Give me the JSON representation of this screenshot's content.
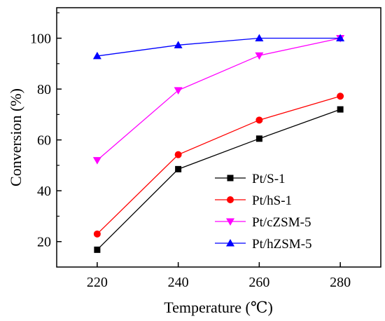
{
  "chart_data": {
    "type": "line",
    "xlabel": "Temperature (℃)",
    "ylabel": "Conversion (%)",
    "x": [
      220,
      240,
      260,
      280
    ],
    "xlim": [
      210,
      290
    ],
    "ylim": [
      10,
      112
    ],
    "xticks": [
      220,
      240,
      260,
      280
    ],
    "yticks": [
      20,
      40,
      60,
      80,
      100
    ],
    "x_tick_labels": [
      "220",
      "240",
      "260",
      "280"
    ],
    "y_tick_labels": [
      "20",
      "40",
      "60",
      "80",
      "100"
    ],
    "grid": false,
    "legend_position": "right",
    "series": [
      {
        "name": "Pt/S-1",
        "values": [
          16.8,
          48.5,
          60.5,
          72.0
        ],
        "color": "#000000",
        "marker": "square"
      },
      {
        "name": "Pt/hS-1",
        "values": [
          23.0,
          54.2,
          67.8,
          77.2
        ],
        "color": "#ff0000",
        "marker": "circle"
      },
      {
        "name": "Pt/cZSM-5",
        "values": [
          52.0,
          79.5,
          93.2,
          100.0
        ],
        "color": "#ff00ff",
        "marker": "triangle-down"
      },
      {
        "name": "Pt/hZSM-5",
        "values": [
          93.0,
          97.3,
          100.0,
          100.0
        ],
        "color": "#0000ff",
        "marker": "triangle-up"
      }
    ]
  }
}
